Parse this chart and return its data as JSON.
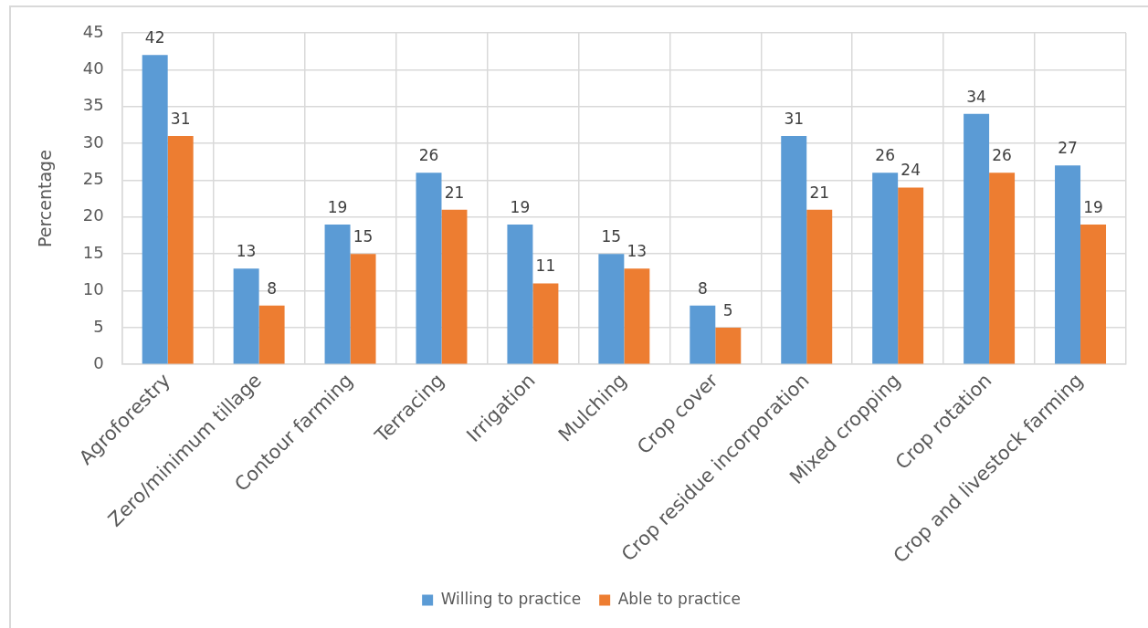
{
  "chart_data": {
    "type": "bar",
    "ylabel": "Percentage",
    "categories": [
      "Agroforestry",
      "Zero/minimum tillage",
      "Contour farming",
      "Terracing",
      "Irrigation",
      "Mulching",
      "Crop cover",
      "Crop residue incorporation",
      "Mixed cropping",
      "Crop rotation",
      "Crop and livestock farming"
    ],
    "series": [
      {
        "name": "Willing to practice",
        "color": "#5b9bd5",
        "values": [
          42,
          13,
          19,
          26,
          19,
          15,
          8,
          31,
          26,
          34,
          27
        ]
      },
      {
        "name": "Able to practice",
        "color": "#ed7d31",
        "values": [
          31,
          8,
          15,
          21,
          11,
          13,
          5,
          21,
          24,
          26,
          19
        ]
      }
    ],
    "ylim": [
      0,
      45
    ],
    "yticks": [
      0,
      5,
      10,
      15,
      20,
      25,
      30,
      35,
      40,
      45
    ],
    "grid": true,
    "legend": "bottom",
    "data_labels": true
  }
}
